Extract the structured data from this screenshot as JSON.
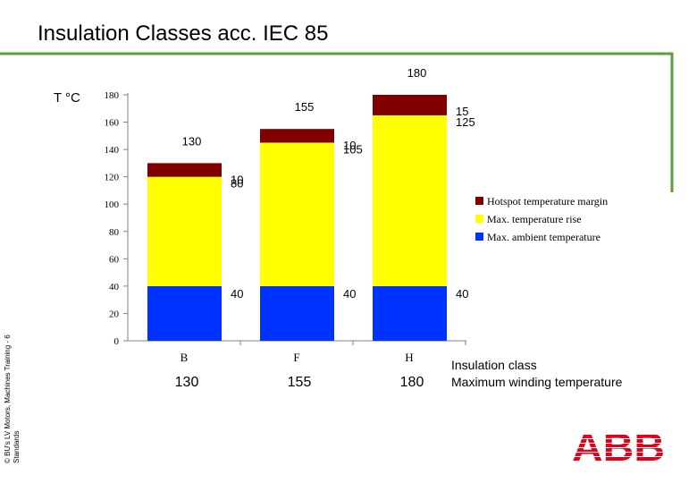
{
  "title": "Insulation Classes acc. IEC 85",
  "side_text": [
    "© BU's LV Motors, Machines Training - 6",
    "Standards"
  ],
  "logo_text": "ABB",
  "colors": {
    "hotspot": "#800000",
    "rise": "#ffff00",
    "ambient": "#0033ff",
    "frame": "#5a9e3a",
    "logo": "#e2001a"
  },
  "chart_data": {
    "type": "bar",
    "stacked": true,
    "y_unit_label": "T °C",
    "ylim": [
      0,
      180
    ],
    "yticks": [
      0,
      20,
      40,
      60,
      80,
      100,
      120,
      140,
      160,
      180
    ],
    "categories": [
      "B",
      "F",
      "H"
    ],
    "series": [
      {
        "name": "Max. ambient temperature",
        "values": [
          40,
          40,
          40
        ],
        "color": "#0033ff"
      },
      {
        "name": "Max. temperature rise",
        "values": [
          80,
          105,
          125
        ],
        "color": "#ffff00"
      },
      {
        "name": "Hotspot temperature margin",
        "values": [
          10,
          10,
          15
        ],
        "color": "#800000"
      }
    ],
    "totals": [
      130,
      155,
      180
    ],
    "legend_order": [
      "Hotspot temperature margin",
      "Max. temperature rise",
      "Max. ambient temperature"
    ],
    "legend_position": "right",
    "row_labels": [
      "Insulation class",
      "Maximum winding temperature"
    ],
    "max_winding_temperature": [
      130,
      155,
      180
    ]
  }
}
